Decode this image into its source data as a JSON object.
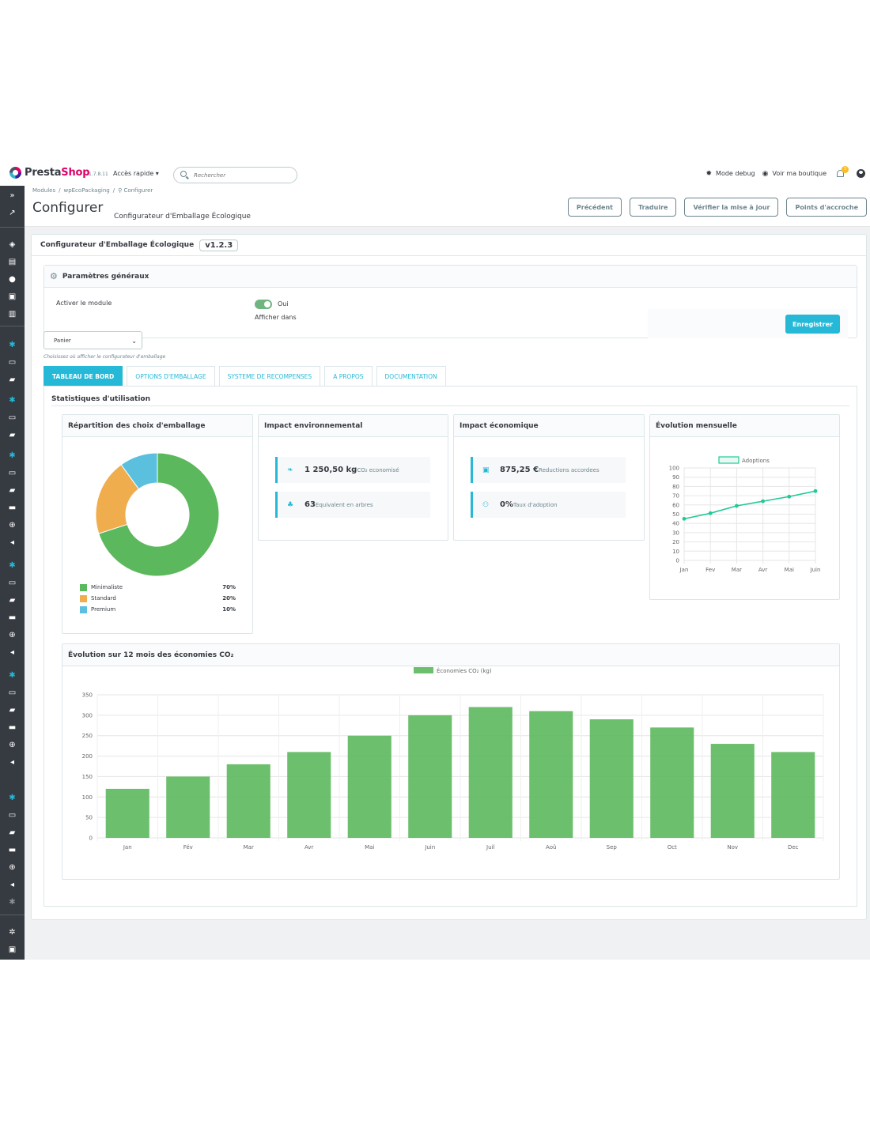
{
  "topbar": {
    "brand_a": "Presta",
    "brand_b": "Shop",
    "version": "1.7.8.11",
    "quick_access": "Accès rapide ▾",
    "search_placeholder": "Rechercher",
    "debug_label": "Mode debug",
    "shop_label": "Voir ma boutique",
    "notif_count": "3",
    "icons": [
      "bug-icon",
      "eye-icon",
      "bell-icon",
      "user-icon"
    ]
  },
  "breadcrumb": [
    "Modules",
    "/",
    "wpEcoPackaging",
    "/",
    "⚲ Configurer"
  ],
  "header": {
    "title": "Configurer",
    "subtitle": "Configurateur d'Emballage Écologique",
    "buttons": [
      "Précédent",
      "Traduire",
      "Vérifier la mise à jour",
      "Points d'accroche"
    ]
  },
  "panel": {
    "title": "Configurateur d'Emballage Écologique",
    "version": "v1.2.3"
  },
  "general": {
    "title": "Paramètres généraux",
    "activate_label": "Activer le module",
    "toggle_value": "Oui",
    "display_in": "Afficher dans",
    "select_value": "Panier",
    "help": "Choisissez où afficher le configurateur d'emballage",
    "save": "Enregistrer"
  },
  "tabs": [
    "TABLEAU DE BORD",
    "OPTIONS D'EMBALLAGE",
    "SYSTEME DE RECOMPENSES",
    "A PROPOS",
    "DOCUMENTATION"
  ],
  "dashboard": {
    "title": "Statistiques d'utilisation",
    "cards": {
      "distribution": "Répartition des choix d'emballage",
      "environment": "Impact environnemental",
      "economic": "Impact économique",
      "monthly": "Évolution mensuelle",
      "yearly": "Évolution sur 12 mois des économies CO₂"
    },
    "env_stats": [
      {
        "value": "1 250,50 kg",
        "label": "CO₂ economisé"
      },
      {
        "value": "63",
        "label": "Equivalent en arbres"
      }
    ],
    "eco_stats": [
      {
        "value": "875,25 €",
        "label": "Reductions accordees"
      },
      {
        "value": "0%",
        "label": "Taux d'adoption"
      }
    ]
  },
  "colors": {
    "accent": "#25b9d7",
    "green": "#5cb85c",
    "orange": "#f0ad4e",
    "blue": "#5bc0de",
    "line": "#20c997",
    "bar": "#5cb85c"
  },
  "chart_data": [
    {
      "type": "pie",
      "categories": [
        "Minimaliste",
        "Standard",
        "Premium"
      ],
      "values": [
        70,
        20,
        10
      ],
      "value_labels": [
        "70%",
        "20%",
        "10%"
      ]
    },
    {
      "type": "line",
      "series": [
        {
          "name": "Adoptions",
          "values": [
            45,
            51,
            59,
            64,
            69,
            75
          ]
        }
      ],
      "categories": [
        "Jan",
        "Fev",
        "Mar",
        "Avr",
        "Mai",
        "Juin"
      ],
      "ylim": [
        0,
        100
      ],
      "yticks": [
        100,
        90,
        80,
        70,
        60,
        50,
        40,
        30,
        20,
        10,
        0
      ]
    },
    {
      "type": "bar",
      "series": [
        {
          "name": "Économies CO₂ (kg)",
          "values": [
            120,
            150,
            180,
            210,
            250,
            300,
            320,
            310,
            290,
            270,
            230,
            210
          ]
        }
      ],
      "categories": [
        "Jan",
        "Fév",
        "Mar",
        "Avr",
        "Mai",
        "Juin",
        "Juil",
        "Aoû",
        "Sep",
        "Oct",
        "Nov",
        "Dec"
      ],
      "ylim": [
        0,
        350
      ],
      "yticks": [
        350,
        300,
        250,
        200,
        150,
        100,
        50,
        0
      ]
    }
  ]
}
